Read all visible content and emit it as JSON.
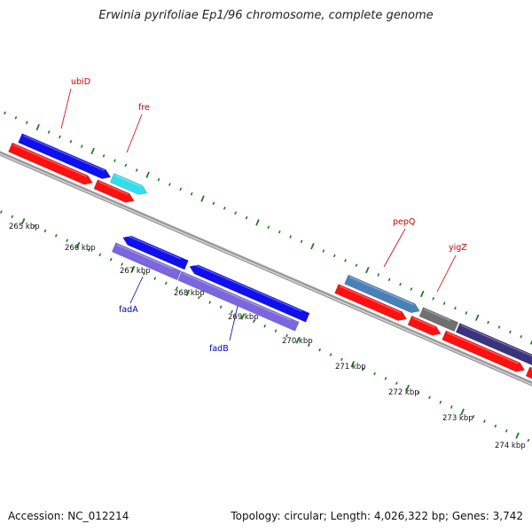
{
  "title": "Erwinia pyrifoliae Ep1/96 chromosome, complete genome",
  "footer": {
    "accession": "Accession: NC_012214",
    "summary": "Topology: circular; Length: 4,026,322 bp; Genes: 3,742"
  },
  "colors": {
    "backbone": "#8a8a8a",
    "tick": "#1e7d1e",
    "forward_label": "#cc0000",
    "reverse_label": "#0000aa",
    "blue_gene": "#1010ee",
    "red_gene": "#ff1010",
    "cyan_gene": "#33ddee",
    "purple_gene": "#7a66dd",
    "steel_gene": "#4a80b8",
    "gray_gene": "#707070",
    "navy_gene": "#3a3480"
  },
  "tick_labels": [
    "265 kbp",
    "266 kbp",
    "267 kbp",
    "268 kbp",
    "269 kbp",
    "270 kbp",
    "271 kbp",
    "272 kbp",
    "273 kbp",
    "274 kbp"
  ],
  "gene_labels_forward": [
    "ubiD",
    "fre",
    "pepQ",
    "yigZ"
  ],
  "gene_labels_reverse": [
    "fadA",
    "fadB"
  ]
}
